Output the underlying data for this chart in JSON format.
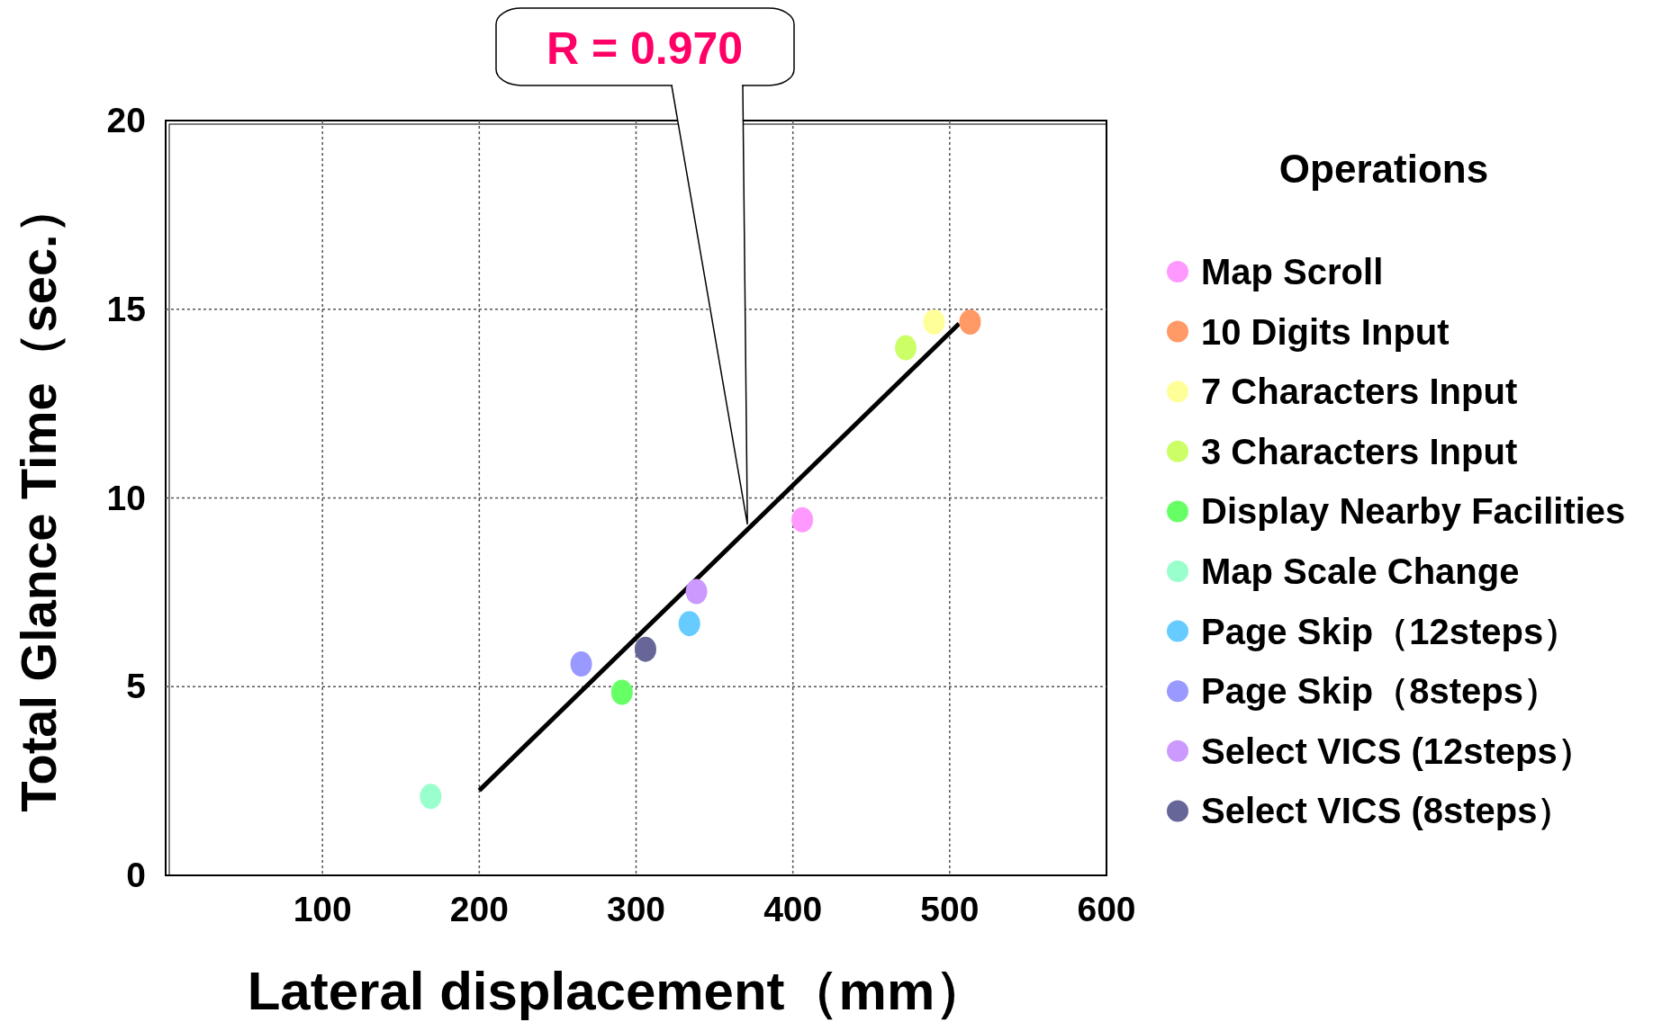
{
  "chart_data": {
    "type": "scatter",
    "xlabel": "Lateral displacement（mm）",
    "ylabel": "Total Glance Time（sec.）",
    "legend_title": "Operations",
    "legend": "right",
    "marker": "circle",
    "grid": true,
    "xlim": [
      0,
      600
    ],
    "ylim": [
      0,
      20
    ],
    "xticks": [
      100,
      200,
      300,
      400,
      500,
      600
    ],
    "yticks": [
      0,
      5,
      10,
      15,
      20
    ],
    "annotations": [
      {
        "text": "R = 0.970",
        "x": 371,
        "y": 9.3
      }
    ],
    "series": [
      {
        "type": "line",
        "marker": "none",
        "x": [
          200,
          506
        ],
        "values": [
          2.25,
          14.62
        ],
        "color": "#000000"
      },
      {
        "name": "Map Scroll",
        "color": "#ff99ff",
        "x": [
          406
        ],
        "values": [
          9.42
        ]
      },
      {
        "name": "10 Digits Input",
        "color": "#ff9966",
        "x": [
          513
        ],
        "values": [
          14.66
        ]
      },
      {
        "name": "7 Characters Input",
        "color": "#ffff99",
        "x": [
          490
        ],
        "values": [
          14.66
        ]
      },
      {
        "name": "3 Characters Input",
        "color": "#ccff66",
        "x": [
          472
        ],
        "values": [
          13.98
        ]
      },
      {
        "name": "Display Nearby Facilities",
        "color": "#66ff66",
        "x": [
          291
        ],
        "values": [
          4.85
        ]
      },
      {
        "name": "Map Scale Change",
        "color": "#99ffcc",
        "x": [
          169
        ],
        "values": [
          2.09
        ]
      },
      {
        "name": "Page Skip（12steps）",
        "color": "#66ccff",
        "x": [
          334
        ],
        "values": [
          6.67
        ]
      },
      {
        "name": "Page Skip（8steps）",
        "color": "#9999ff",
        "x": [
          265
        ],
        "values": [
          5.6
        ]
      },
      {
        "name": "Select VICS (12steps）",
        "color": "#cc99ff",
        "x": [
          338.5
        ],
        "values": [
          7.52
        ]
      },
      {
        "name": "Select VICS (8steps）",
        "color": "#666699",
        "x": [
          306
        ],
        "values": [
          5.99
        ]
      }
    ]
  }
}
